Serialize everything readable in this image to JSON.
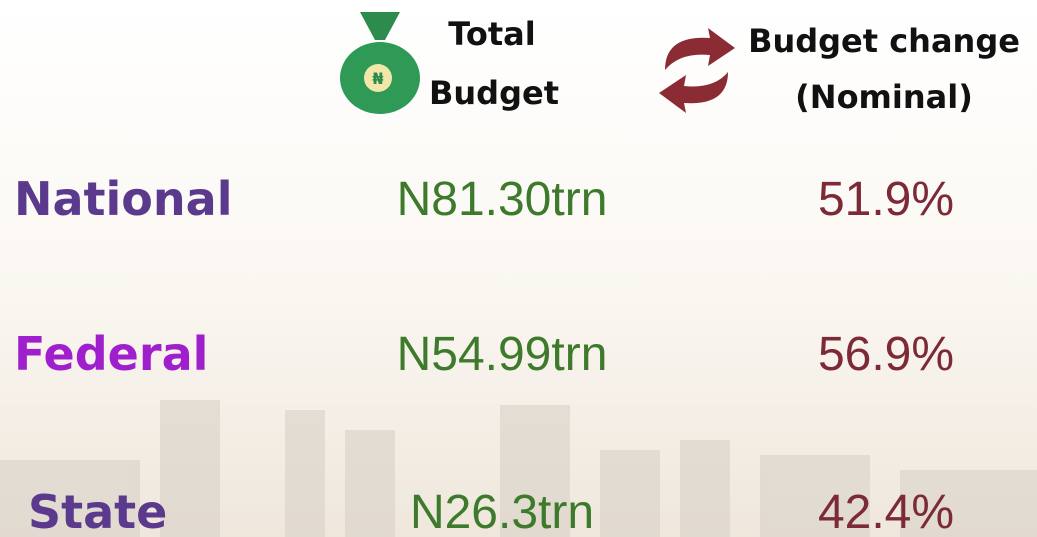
{
  "header": {
    "icon_symbol": "₦",
    "total_budget": [
      "Total",
      "Budget"
    ],
    "budget_change": [
      "Budget change",
      "(Nominal)"
    ]
  },
  "table": {
    "rows": [
      [
        "National",
        "N81.30trn",
        "51.9%"
      ],
      [
        "Federal",
        "N54.99trn",
        "56.9%"
      ],
      [
        "State",
        "N26.3trn",
        "42.4%"
      ]
    ]
  }
}
